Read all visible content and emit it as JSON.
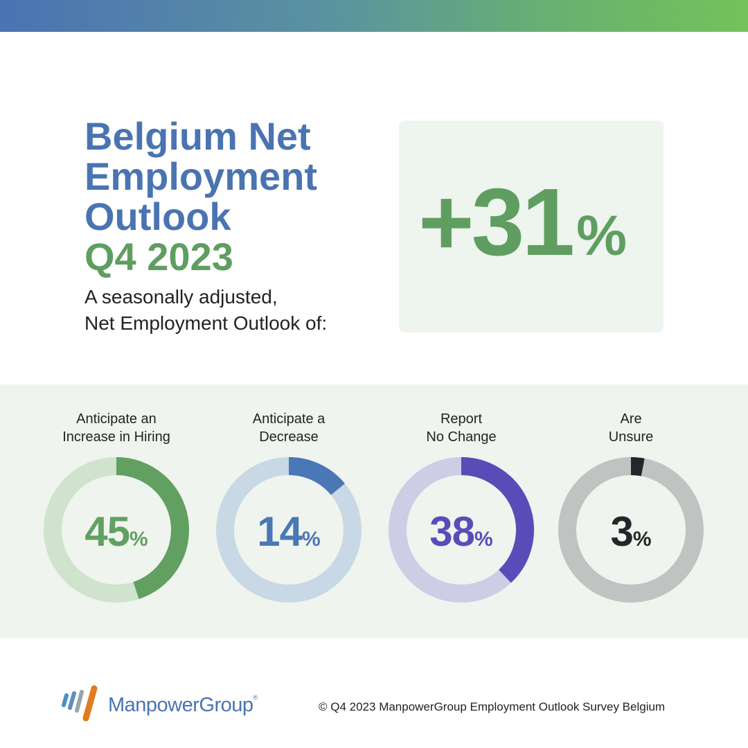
{
  "header": {
    "title_lines": [
      "Belgium Net",
      "Employment",
      "Outlook"
    ],
    "period": "Q4 2023",
    "subtitle_lines": [
      "A seasonally adjusted,",
      "Net Employment Outlook of:"
    ]
  },
  "headline_stat": {
    "value": "+31",
    "unit": "%",
    "color": "#5f9e60"
  },
  "chart_data": {
    "type": "pie",
    "variant": "donut",
    "series": [
      {
        "label_lines": [
          "Anticipate an",
          "Increase in Hiring"
        ],
        "value": 45,
        "display": "45",
        "unit": "%",
        "color": "#62a061",
        "track_color": "#cfe3cd"
      },
      {
        "label_lines": [
          "Anticipate a",
          "Decrease"
        ],
        "value": 14,
        "display": "14",
        "unit": "%",
        "color": "#4a77b5",
        "track_color": "#c8d8e4"
      },
      {
        "label_lines": [
          "Report",
          "No Change"
        ],
        "value": 38,
        "display": "38",
        "unit": "%",
        "color": "#5a4cb8",
        "track_color": "#cdcde6"
      },
      {
        "label_lines": [
          "Are",
          "Unsure"
        ],
        "value": 3,
        "display": "3",
        "unit": "%",
        "color": "#22272b",
        "track_color": "#bfc3c1"
      }
    ]
  },
  "footer": {
    "brand": "ManpowerGroup",
    "brand_mark": "®",
    "copyright": "© Q4 2023 ManpowerGroup Employment Outlook Survey Belgium"
  },
  "colors": {
    "title_blue": "#4a74b1",
    "accent_green": "#5f9e60",
    "band_bg": "#eff4ee",
    "stat_box_bg": "#eef4ee"
  }
}
